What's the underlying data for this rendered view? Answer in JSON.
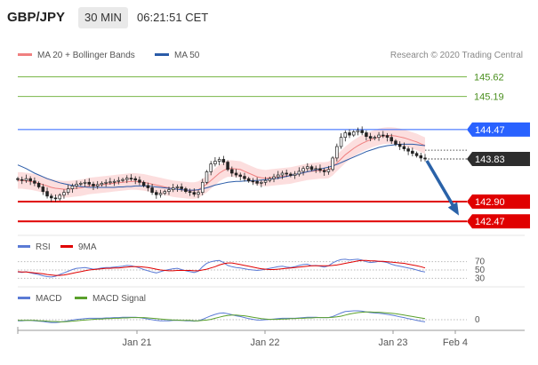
{
  "header": {
    "pair": "GBP/JPY",
    "interval": "30 MIN",
    "time": "06:21:51 CET"
  },
  "legend": {
    "ma20": {
      "label": "MA 20 + Bollinger Bands",
      "color": "#f08080"
    },
    "ma50": {
      "label": "MA 50",
      "color": "#2a5ba8"
    },
    "credit": "Research © 2020 Trading Central"
  },
  "levels": [
    {
      "label": "145.62",
      "value": 145.62,
      "kind": "target",
      "color": "#7ab648"
    },
    {
      "label": "145.19",
      "value": 145.19,
      "kind": "target",
      "color": "#7ab648"
    },
    {
      "label": "144.47",
      "value": 144.47,
      "kind": "pivot",
      "color": "#2962ff"
    },
    {
      "label": "142.90",
      "value": 142.9,
      "kind": "support",
      "color": "#e00000"
    },
    {
      "label": "142.47",
      "value": 142.47,
      "kind": "support",
      "color": "#e00000"
    }
  ],
  "current_price": {
    "label": "143.83",
    "value": 143.83
  },
  "rsi_panel": {
    "legend": [
      {
        "label": "RSI",
        "color": "#5b7bd5"
      },
      {
        "label": "9MA",
        "color": "#e00000"
      }
    ],
    "levels": [
      {
        "label": "70",
        "value": 70
      },
      {
        "label": "50",
        "value": 50
      },
      {
        "label": "30",
        "value": 30
      }
    ]
  },
  "macd_panel": {
    "legend": [
      {
        "label": "MACD",
        "color": "#5b7bd5"
      },
      {
        "label": "MACD Signal",
        "color": "#5aa02c"
      }
    ],
    "zero_label": "0"
  },
  "x_axis": {
    "ticks": [
      "Jan 21",
      "Jan 22",
      "Jan 23",
      "Feb 4"
    ]
  },
  "chart_data": {
    "type": "candlestick",
    "ylim": [
      142.3,
      145.9
    ],
    "x_ticks": [
      "Jan 21",
      "Jan 22",
      "Jan 23",
      "Feb 4"
    ],
    "close": [
      143.38,
      143.36,
      143.4,
      143.35,
      143.3,
      143.22,
      143.12,
      143.02,
      142.98,
      142.96,
      143.04,
      143.1,
      143.18,
      143.24,
      143.28,
      143.3,
      143.32,
      143.28,
      143.24,
      143.27,
      143.3,
      143.32,
      143.33,
      143.34,
      143.36,
      143.38,
      143.41,
      143.4,
      143.37,
      143.32,
      143.25,
      143.2,
      143.1,
      143.05,
      143.08,
      143.12,
      143.16,
      143.2,
      143.22,
      143.18,
      143.12,
      143.1,
      143.06,
      143.1,
      143.32,
      143.55,
      143.72,
      143.78,
      143.82,
      143.76,
      143.6,
      143.52,
      143.48,
      143.45,
      143.4,
      143.35,
      143.34,
      143.3,
      143.32,
      143.36,
      143.4,
      143.44,
      143.48,
      143.52,
      143.5,
      143.47,
      143.5,
      143.56,
      143.62,
      143.66,
      143.6,
      143.62,
      143.58,
      143.55,
      143.6,
      143.85,
      144.1,
      144.3,
      144.4,
      144.35,
      144.42,
      144.45,
      144.4,
      144.32,
      144.28,
      144.3,
      144.35,
      144.34,
      144.3,
      144.22,
      144.15,
      144.1,
      144.05,
      144.0,
      143.95,
      143.9,
      143.85,
      143.83
    ],
    "ma20": [
      143.36,
      143.36,
      143.35,
      143.34,
      143.32,
      143.3,
      143.27,
      143.24,
      143.21,
      143.19,
      143.18,
      143.17,
      143.17,
      143.18,
      143.19,
      143.2,
      143.22,
      143.24,
      143.25,
      143.26,
      143.27,
      143.28,
      143.29,
      143.3,
      143.31,
      143.32,
      143.33,
      143.34,
      143.34,
      143.33,
      143.32,
      143.3,
      143.28,
      143.26,
      143.24,
      143.22,
      143.2,
      143.18,
      143.17,
      143.16,
      143.15,
      143.14,
      143.14,
      143.16,
      143.22,
      143.28,
      143.36,
      143.44,
      143.52,
      143.58,
      143.62,
      143.62,
      143.61,
      143.6,
      143.56,
      143.52,
      143.48,
      143.44,
      143.42,
      143.41,
      143.42,
      143.43,
      143.44,
      143.45,
      143.46,
      143.47,
      143.49,
      143.51,
      143.53,
      143.55,
      143.56,
      143.57,
      143.58,
      143.58,
      143.59,
      143.65,
      143.74,
      143.83,
      143.92,
      143.99,
      144.06,
      144.12,
      144.17,
      144.21,
      144.25,
      144.28,
      144.31,
      144.33,
      144.34,
      144.34,
      144.33,
      144.31,
      144.29,
      144.26,
      144.23,
      144.2,
      144.16,
      144.12
    ],
    "ma50": [
      143.7,
      143.66,
      143.62,
      143.57,
      143.52,
      143.48,
      143.44,
      143.4,
      143.37,
      143.34,
      143.31,
      143.29,
      143.27,
      143.25,
      143.24,
      143.23,
      143.22,
      143.21,
      143.21,
      143.21,
      143.21,
      143.21,
      143.21,
      143.21,
      143.22,
      143.22,
      143.23,
      143.23,
      143.24,
      143.24,
      143.24,
      143.24,
      143.23,
      143.22,
      143.21,
      143.2,
      143.19,
      143.18,
      143.17,
      143.16,
      143.15,
      143.15,
      143.15,
      143.16,
      143.18,
      143.2,
      143.23,
      143.26,
      143.28,
      143.3,
      143.32,
      143.33,
      143.34,
      143.34,
      143.35,
      143.35,
      143.36,
      143.36,
      143.37,
      143.38,
      143.39,
      143.4,
      143.41,
      143.43,
      143.45,
      143.47,
      143.49,
      143.51,
      143.53,
      143.55,
      143.57,
      143.59,
      143.61,
      143.63,
      143.65,
      143.68,
      143.71,
      143.75,
      143.79,
      143.83,
      143.87,
      143.91,
      143.95,
      143.99,
      144.02,
      144.05,
      144.08,
      144.1,
      144.12,
      144.13,
      144.14,
      144.15,
      144.15,
      144.15,
      144.15,
      144.14,
      144.13,
      144.12
    ],
    "bb_width": 0.18,
    "projection": {
      "from": 143.83,
      "to": 142.47
    },
    "rsi_ylim": [
      20,
      80
    ],
    "rsi": [
      45,
      44,
      46,
      43,
      41,
      39,
      36,
      34,
      33,
      35,
      39,
      43,
      47,
      51,
      54,
      55,
      56,
      54,
      52,
      53,
      55,
      56,
      56,
      57,
      58,
      59,
      61,
      60,
      58,
      55,
      51,
      48,
      45,
      43,
      46,
      49,
      51,
      53,
      54,
      51,
      48,
      46,
      44,
      47,
      58,
      66,
      70,
      72,
      73,
      68,
      61,
      58,
      56,
      55,
      53,
      51,
      50,
      49,
      50,
      52,
      54,
      56,
      58,
      59,
      57,
      56,
      58,
      61,
      63,
      64,
      60,
      61,
      59,
      57,
      60,
      67,
      72,
      75,
      76,
      74,
      75,
      76,
      74,
      70,
      68,
      69,
      71,
      70,
      68,
      64,
      61,
      59,
      57,
      55,
      53,
      50,
      47,
      45
    ],
    "rsi_ma": [
      46,
      45,
      45,
      44,
      43,
      42,
      41,
      39,
      38,
      37,
      37,
      38,
      40,
      42,
      44,
      46,
      48,
      50,
      51,
      52,
      53,
      54,
      54,
      55,
      55,
      56,
      57,
      58,
      58,
      58,
      57,
      56,
      54,
      52,
      50,
      49,
      48,
      48,
      49,
      49,
      49,
      49,
      48,
      48,
      50,
      52,
      55,
      58,
      62,
      65,
      67,
      67,
      65,
      63,
      61,
      59,
      57,
      55,
      53,
      52,
      51,
      51,
      52,
      53,
      54,
      55,
      56,
      57,
      58,
      59,
      60,
      60,
      60,
      60,
      60,
      61,
      62,
      64,
      66,
      68,
      70,
      72,
      73,
      73,
      72,
      72,
      71,
      71,
      70,
      69,
      68,
      67,
      66,
      64,
      62,
      60,
      58,
      55
    ],
    "macd_ylim": [
      -0.25,
      0.45
    ],
    "macd": [
      -0.03,
      -0.03,
      -0.02,
      -0.02,
      -0.03,
      -0.04,
      -0.05,
      -0.07,
      -0.08,
      -0.08,
      -0.07,
      -0.05,
      -0.03,
      -0.01,
      0.01,
      0.02,
      0.03,
      0.04,
      0.04,
      0.04,
      0.04,
      0.05,
      0.05,
      0.06,
      0.06,
      0.07,
      0.07,
      0.07,
      0.07,
      0.06,
      0.04,
      0.02,
      0.0,
      -0.02,
      -0.03,
      -0.03,
      -0.03,
      -0.02,
      -0.02,
      -0.02,
      -0.03,
      -0.03,
      -0.04,
      -0.03,
      0.01,
      0.06,
      0.11,
      0.15,
      0.18,
      0.19,
      0.17,
      0.14,
      0.11,
      0.09,
      0.06,
      0.03,
      0.01,
      -0.01,
      -0.01,
      0.0,
      0.01,
      0.02,
      0.03,
      0.04,
      0.04,
      0.04,
      0.04,
      0.05,
      0.06,
      0.07,
      0.07,
      0.07,
      0.06,
      0.06,
      0.06,
      0.09,
      0.14,
      0.19,
      0.23,
      0.24,
      0.25,
      0.25,
      0.24,
      0.22,
      0.2,
      0.19,
      0.18,
      0.17,
      0.15,
      0.13,
      0.11,
      0.08,
      0.06,
      0.03,
      0.01,
      -0.02,
      -0.04,
      -0.06
    ],
    "macd_signal": [
      -0.02,
      -0.02,
      -0.02,
      -0.02,
      -0.02,
      -0.03,
      -0.03,
      -0.04,
      -0.05,
      -0.05,
      -0.06,
      -0.06,
      -0.05,
      -0.04,
      -0.03,
      -0.02,
      -0.01,
      0.0,
      0.01,
      0.02,
      0.02,
      0.03,
      0.03,
      0.04,
      0.04,
      0.05,
      0.05,
      0.06,
      0.06,
      0.06,
      0.06,
      0.05,
      0.04,
      0.03,
      0.02,
      0.01,
      0.0,
      -0.01,
      -0.01,
      -0.02,
      -0.02,
      -0.02,
      -0.03,
      -0.03,
      -0.02,
      -0.01,
      0.01,
      0.04,
      0.07,
      0.1,
      0.12,
      0.13,
      0.13,
      0.12,
      0.11,
      0.09,
      0.07,
      0.05,
      0.03,
      0.02,
      0.01,
      0.01,
      0.01,
      0.02,
      0.02,
      0.03,
      0.03,
      0.04,
      0.04,
      0.05,
      0.05,
      0.06,
      0.06,
      0.06,
      0.06,
      0.07,
      0.08,
      0.1,
      0.13,
      0.16,
      0.18,
      0.2,
      0.21,
      0.22,
      0.22,
      0.21,
      0.21,
      0.2,
      0.19,
      0.18,
      0.17,
      0.15,
      0.13,
      0.11,
      0.09,
      0.07,
      0.05,
      0.03
    ]
  }
}
